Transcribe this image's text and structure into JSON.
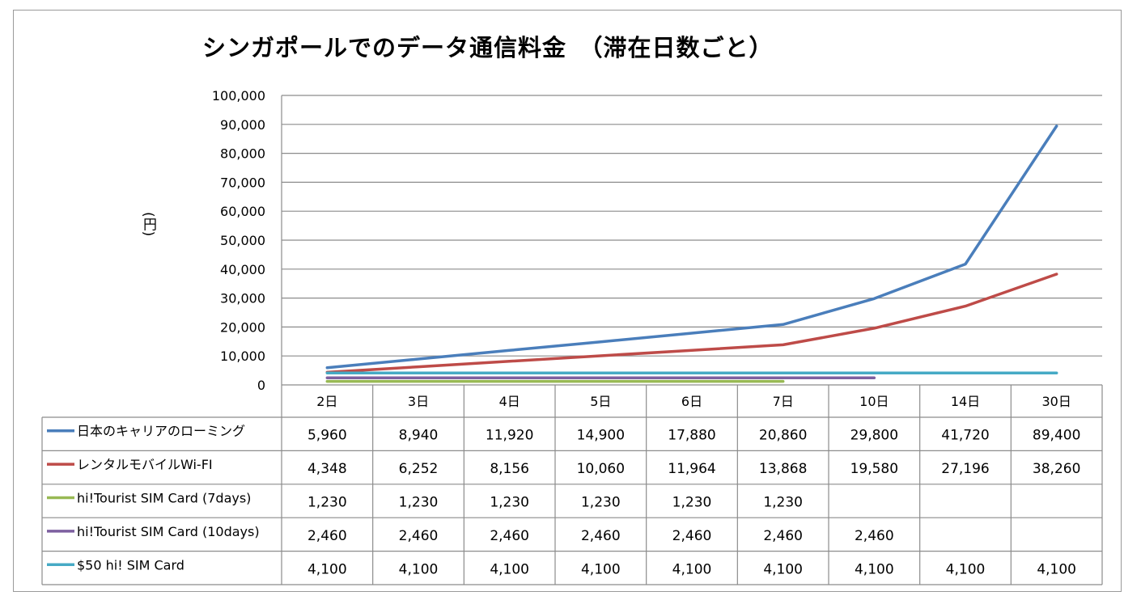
{
  "chart_data": {
    "type": "line",
    "title": "シンガポールでのデータ通信料金　（滞在日数ごと）",
    "ylabel": "(円)",
    "ylim": [
      0,
      100000
    ],
    "yticks": [
      "0",
      "10,000",
      "20,000",
      "30,000",
      "40,000",
      "50,000",
      "60,000",
      "70,000",
      "80,000",
      "90,000",
      "100,000"
    ],
    "ytick_values": [
      0,
      10000,
      20000,
      30000,
      40000,
      50000,
      60000,
      70000,
      80000,
      90000,
      100000
    ],
    "grid": true,
    "legend": "table",
    "categories": [
      "2日",
      "3日",
      "4日",
      "5日",
      "6日",
      "7日",
      "10日",
      "14日",
      "30日"
    ],
    "series": [
      {
        "name": "日本のキャリアのローミング",
        "color": "#4a7ebb",
        "values": [
          5960,
          8940,
          11920,
          14900,
          17880,
          20860,
          29800,
          41720,
          89400
        ],
        "labels": [
          "5,960",
          "8,940",
          "11,920",
          "14,900",
          "17,880",
          "20,860",
          "29,800",
          "41,720",
          "89,400"
        ]
      },
      {
        "name": "レンタルモバイルWi-FI",
        "color": "#be4b48",
        "values": [
          4348,
          6252,
          8156,
          10060,
          11964,
          13868,
          19580,
          27196,
          38260
        ],
        "labels": [
          "4,348",
          "6,252",
          "8,156",
          "10,060",
          "11,964",
          "13,868",
          "19,580",
          "27,196",
          "38,260"
        ]
      },
      {
        "name": "hi!Tourist SIM Card (7days)",
        "color": "#98b954",
        "values": [
          1230,
          1230,
          1230,
          1230,
          1230,
          1230,
          null,
          null,
          null
        ],
        "labels": [
          "1,230",
          "1,230",
          "1,230",
          "1,230",
          "1,230",
          "1,230",
          "",
          "",
          ""
        ]
      },
      {
        "name": "hi!Tourist SIM Card (10days)",
        "color": "#7d60a0",
        "values": [
          2460,
          2460,
          2460,
          2460,
          2460,
          2460,
          2460,
          null,
          null
        ],
        "labels": [
          "2,460",
          "2,460",
          "2,460",
          "2,460",
          "2,460",
          "2,460",
          "2,460",
          "",
          ""
        ]
      },
      {
        "name": "$50 hi! SIM Card",
        "color": "#46aac5",
        "values": [
          4100,
          4100,
          4100,
          4100,
          4100,
          4100,
          4100,
          4100,
          4100
        ],
        "labels": [
          "4,100",
          "4,100",
          "4,100",
          "4,100",
          "4,100",
          "4,100",
          "4,100",
          "4,100",
          "4,100"
        ]
      }
    ]
  }
}
